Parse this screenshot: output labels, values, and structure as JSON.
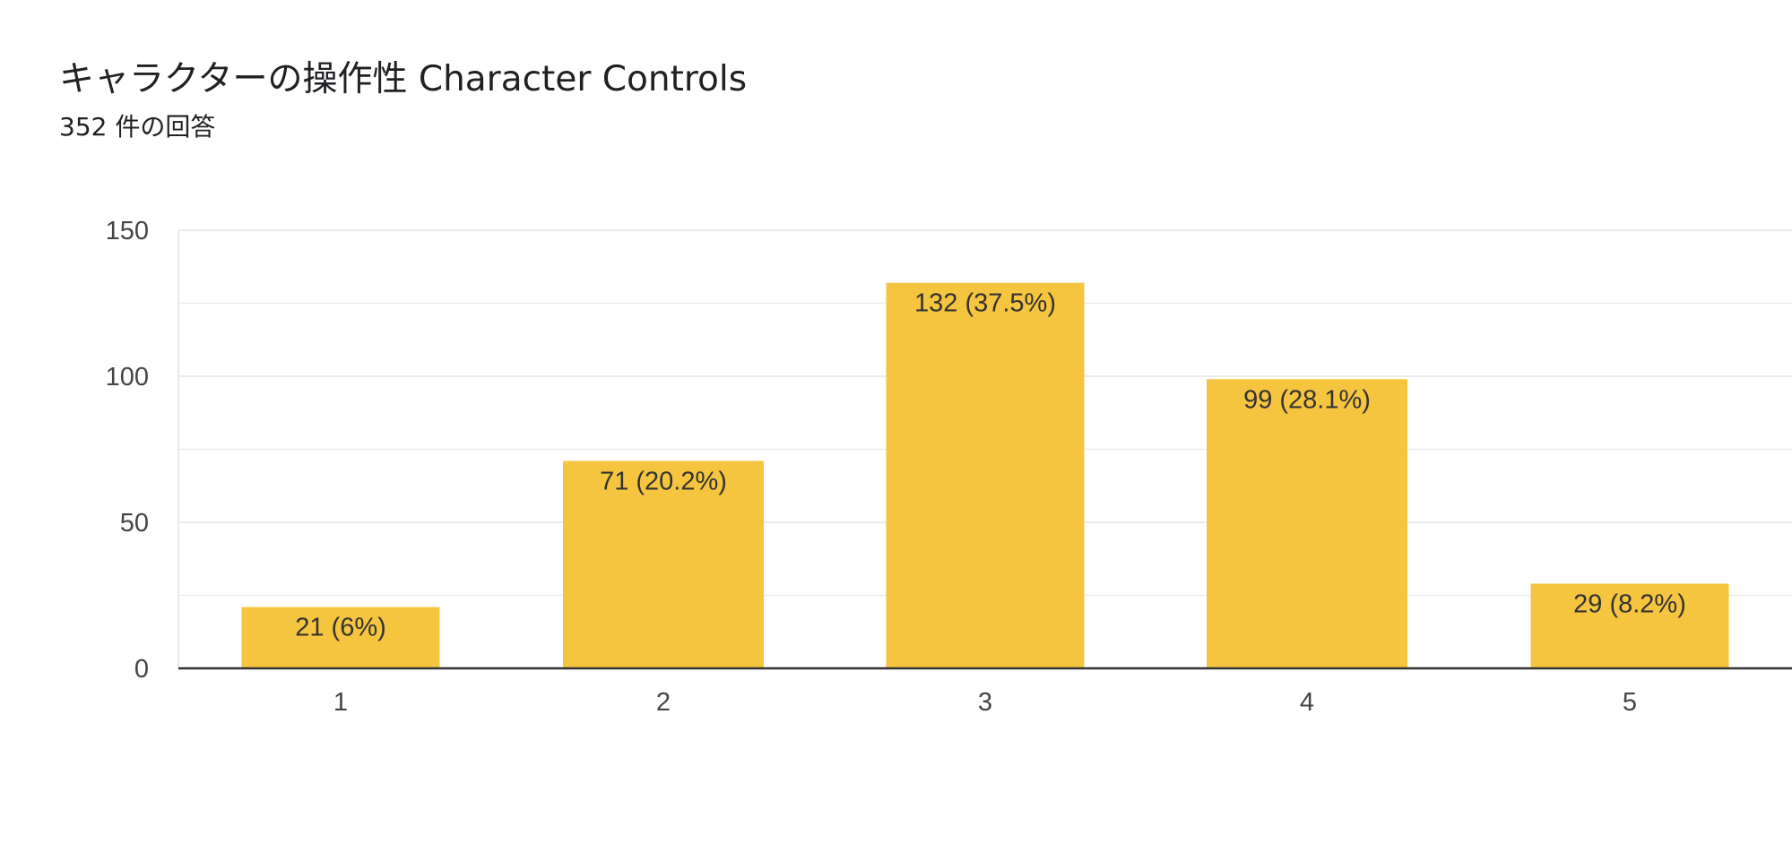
{
  "header": {
    "title": "キャラクターの操作性 Character Controls",
    "subtitle": "352 件の回答"
  },
  "colors": {
    "bar": "#f6c540",
    "grid": "#ebebeb",
    "axis": "#333333"
  },
  "chart_data": {
    "type": "bar",
    "categories": [
      "1",
      "2",
      "3",
      "4",
      "5"
    ],
    "values": [
      21,
      71,
      132,
      99,
      29
    ],
    "data_labels": [
      "21 (6%)",
      "71 (20.2%)",
      "132 (37.5%)",
      "99 (28.1%)",
      "29 (8.2%)"
    ],
    "title": "キャラクターの操作性 Character Controls",
    "subtitle": "352 件の回答",
    "xlabel": "",
    "ylabel": "",
    "ylim": [
      0,
      150
    ],
    "yticks": [
      0,
      50,
      100,
      150
    ],
    "grid": true,
    "legend": "none"
  }
}
